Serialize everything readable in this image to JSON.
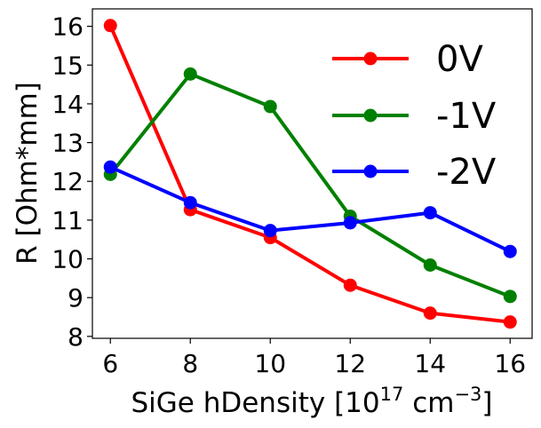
{
  "chart_data": {
    "type": "line",
    "x": [
      6,
      8,
      10,
      12,
      14,
      16
    ],
    "xlim": [
      5.55,
      16.55
    ],
    "ylim": [
      7.95,
      16.45
    ],
    "xticks": [
      6,
      8,
      10,
      12,
      14,
      16
    ],
    "yticks": [
      8,
      9,
      10,
      11,
      12,
      13,
      14,
      15,
      16
    ],
    "xlabel": {
      "main": "SiGe hDensity [10",
      "sup1": "17",
      "mid": " cm",
      "sup2": "−3",
      "end": "]"
    },
    "ylabel": "R [Ohm*mm]",
    "grid": false,
    "legend_position": "top-right",
    "series": [
      {
        "name": "0V",
        "color": "#ff0000",
        "values": [
          16.02,
          11.27,
          10.55,
          9.32,
          8.6,
          8.37
        ]
      },
      {
        "name": "-1V",
        "color": "#008000",
        "values": [
          12.18,
          14.77,
          13.93,
          11.1,
          9.84,
          9.03
        ]
      },
      {
        "name": "-2V",
        "color": "#0000ff",
        "values": [
          12.37,
          11.45,
          10.73,
          10.93,
          11.19,
          10.19
        ]
      }
    ]
  }
}
